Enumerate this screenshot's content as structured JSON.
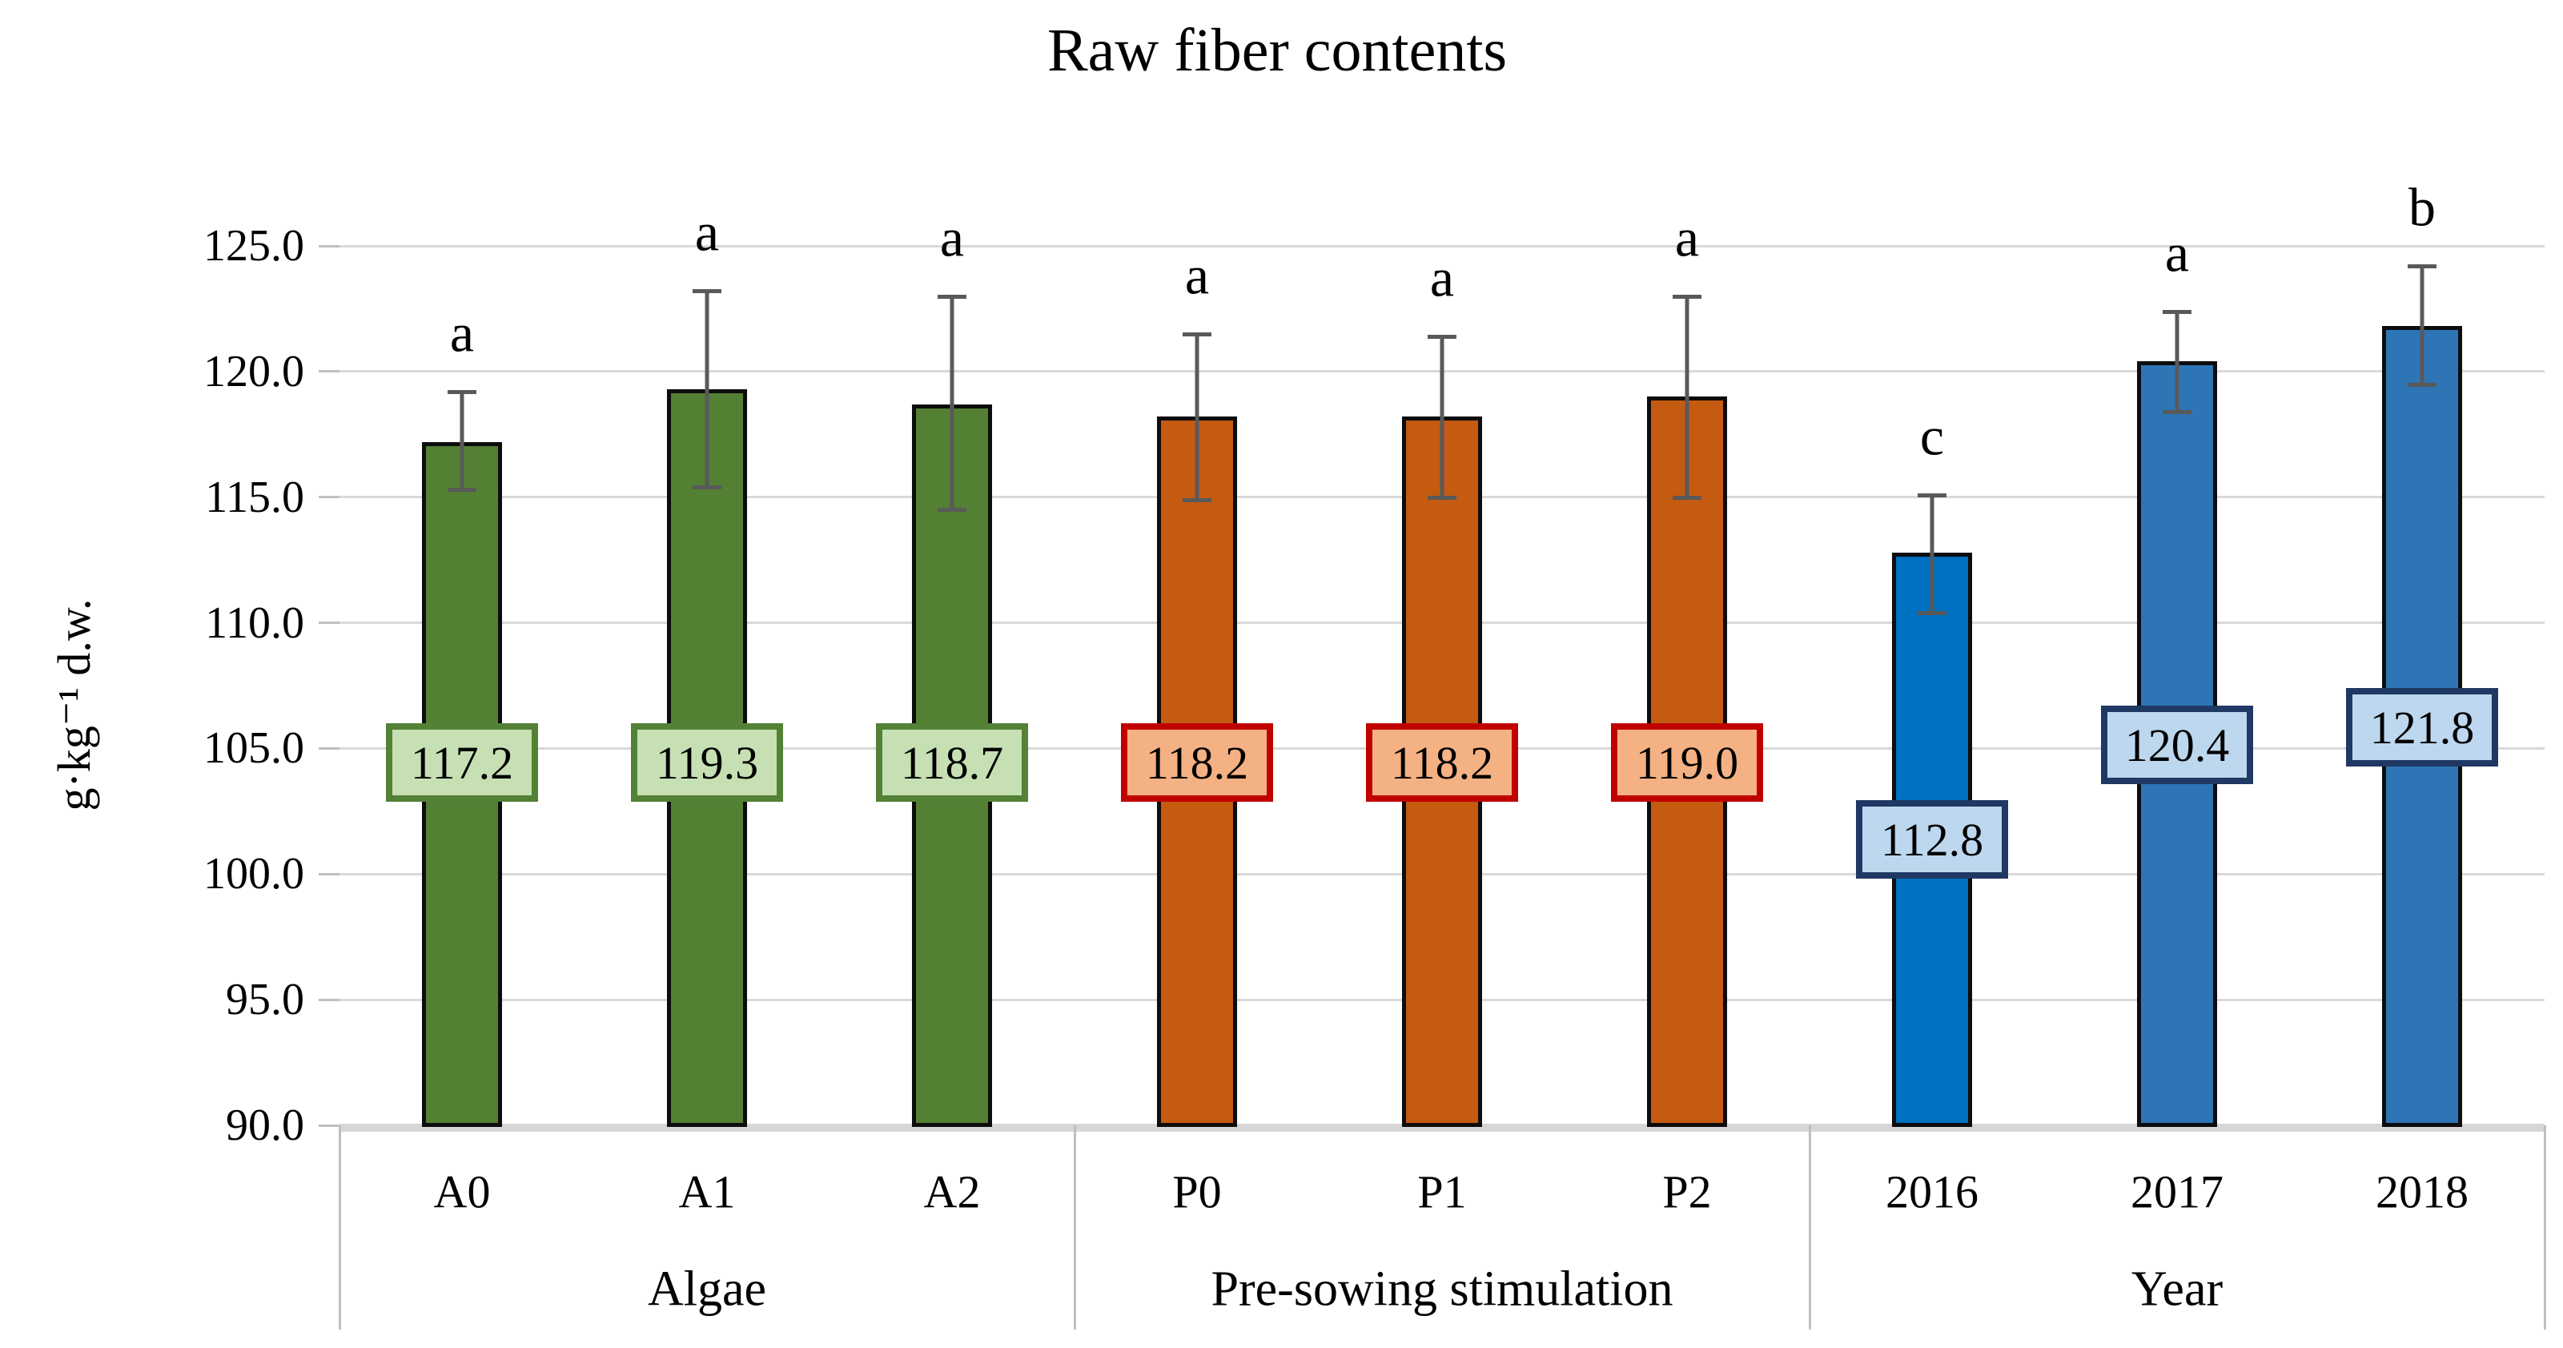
{
  "chart_data": {
    "type": "bar",
    "title": "Raw fiber contents",
    "xlabel": "",
    "ylabel": "g·kg⁻¹ d.w.",
    "ylim": [
      90.0,
      125.0
    ],
    "y_tick_step": 5.0,
    "y_ticks": [
      "125.0",
      "120.0",
      "115.0",
      "110.0",
      "105.0",
      "100.0",
      "95.0",
      "90.0"
    ],
    "y_tick_values": [
      125,
      120,
      115,
      110,
      105,
      100,
      95,
      90
    ],
    "grid": "horizontal",
    "legend_position": "none",
    "categories": [
      "A0",
      "A1",
      "A2",
      "P0",
      "P1",
      "P2",
      "2016",
      "2017",
      "2018"
    ],
    "values": [
      117.2,
      119.3,
      118.7,
      118.2,
      118.2,
      119.0,
      112.8,
      120.4,
      121.8
    ],
    "significance_letters": [
      "a",
      "a",
      "a",
      "a",
      "a",
      "a",
      "c",
      "a",
      "b"
    ],
    "groups": [
      {
        "name": "Algae",
        "bar_color": "#538033",
        "label_fill": "#c6e0b4",
        "label_border": "#538135",
        "bars": [
          {
            "category": "A0",
            "value": 117.2,
            "label": "117.2",
            "letter": "a",
            "err_lo": 115.3,
            "err_hi": 119.2
          },
          {
            "category": "A1",
            "value": 119.3,
            "label": "119.3",
            "letter": "a",
            "err_lo": 115.4,
            "err_hi": 123.2
          },
          {
            "category": "A2",
            "value": 118.7,
            "label": "118.7",
            "letter": "a",
            "err_lo": 114.5,
            "err_hi": 123.0
          }
        ]
      },
      {
        "name": "Pre-sowing stimulation",
        "bar_color": "#c55a11",
        "label_fill": "#f4b183",
        "label_border": "#c00000",
        "bars": [
          {
            "category": "P0",
            "value": 118.2,
            "label": "118.2",
            "letter": "a",
            "err_lo": 114.9,
            "err_hi": 121.5
          },
          {
            "category": "P1",
            "value": 118.2,
            "label": "118.2",
            "letter": "a",
            "err_lo": 115.0,
            "err_hi": 121.4
          },
          {
            "category": "P2",
            "value": 119.0,
            "label": "119.0",
            "letter": "a",
            "err_lo": 115.0,
            "err_hi": 123.0
          }
        ]
      },
      {
        "name": "Year",
        "bar_color": "#2e75b6",
        "label_fill": "#bdd7ee",
        "label_border": "#1f3864",
        "bars": [
          {
            "category": "2016",
            "value": 112.8,
            "label": "112.8",
            "letter": "c",
            "err_lo": 110.4,
            "err_hi": 115.1,
            "color": "#0070c0"
          },
          {
            "category": "2017",
            "value": 120.4,
            "label": "120.4",
            "letter": "a",
            "err_lo": 118.4,
            "err_hi": 122.4
          },
          {
            "category": "2018",
            "value": 121.8,
            "label": "121.8",
            "letter": "b",
            "err_lo": 119.5,
            "err_hi": 124.2
          }
        ]
      }
    ],
    "error_bar_color": "#595959",
    "gridline_color": "#d9d9d9"
  }
}
